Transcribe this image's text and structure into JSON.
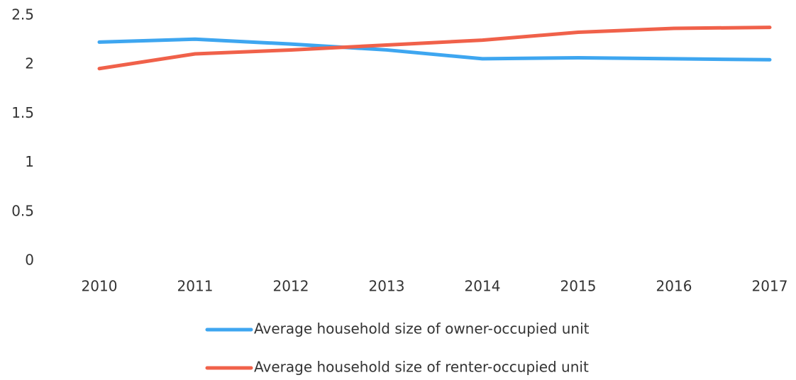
{
  "chart_data": {
    "type": "line",
    "categories": [
      "2010",
      "2011",
      "2012",
      "2013",
      "2014",
      "2015",
      "2016",
      "2017"
    ],
    "series": [
      {
        "name": "Average household size of owner-occupied unit",
        "color": "#3ea6f0",
        "values": [
          2.23,
          2.26,
          2.21,
          2.15,
          2.06,
          2.07,
          2.06,
          2.05
        ]
      },
      {
        "name": "Average household size of renter-occupied unit",
        "color": "#f0614a",
        "values": [
          1.96,
          2.11,
          2.15,
          2.2,
          2.25,
          2.33,
          2.37,
          2.38
        ]
      }
    ],
    "ylim": [
      0,
      2.5
    ],
    "yticks": [
      0,
      0.5,
      1,
      1.5,
      2,
      2.5
    ],
    "grid": false,
    "legend": "bottom"
  }
}
